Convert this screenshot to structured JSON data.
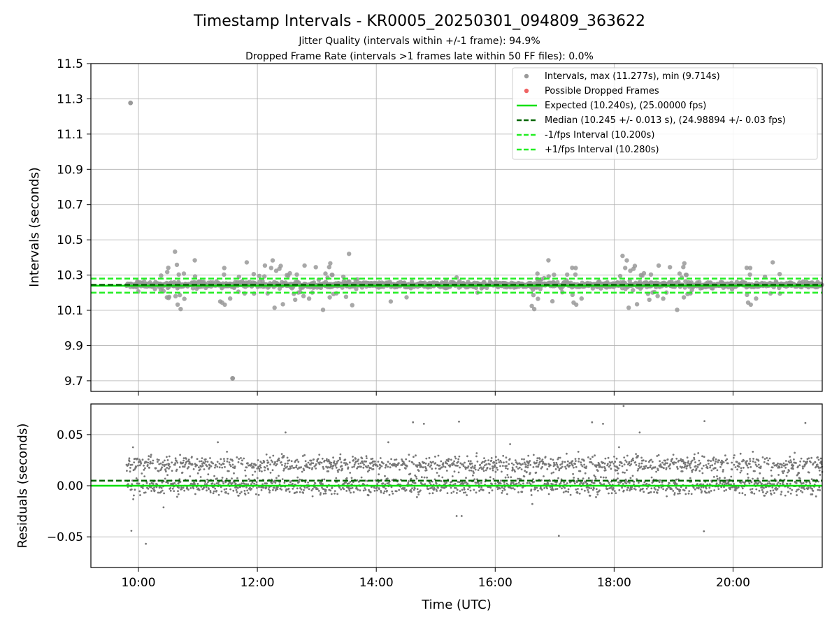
{
  "chart_data": {
    "type": "scatter",
    "title": "Timestamp Intervals - KR0005_20250301_094809_363622",
    "subtitle_1": "Jitter Quality (intervals within +/-1 frame): 94.9%",
    "subtitle_2": "Dropped Frame Rate (intervals >1 frames late within 50 FF files): 0.0%",
    "xlabel": "Time (UTC)",
    "x_tick_labels": [
      "10:00",
      "12:00",
      "14:00",
      "16:00",
      "18:00",
      "20:00"
    ],
    "xlim": [
      "09:12",
      "21:30"
    ],
    "data_start": "09:48",
    "top_panel": {
      "ylabel": "Intervals (seconds)",
      "ylim": [
        9.64,
        11.5
      ],
      "y_tick_labels": [
        "9.7",
        "9.9",
        "10.1",
        "10.3",
        "10.5",
        "10.7",
        "10.9",
        "11.1",
        "11.3",
        "11.5"
      ],
      "grid": true,
      "expected": 10.24,
      "median": 10.245,
      "lower": 10.2,
      "upper": 10.28,
      "max": 11.277,
      "min": 9.714,
      "max_at": "09:52",
      "min_at": "11:35",
      "dropped_frames": 0
    },
    "bottom_panel": {
      "ylabel": "Residuals (seconds)",
      "ylim": [
        -0.08,
        0.08
      ],
      "y_tick_labels": [
        "−0.05",
        "0.00",
        "0.05"
      ],
      "grid": true,
      "expected": 0.0,
      "median": 0.005
    },
    "legend": {
      "position": "top-right",
      "entries": [
        "Intervals, max (11.277s), min (9.714s)",
        "Possible Dropped Frames",
        "Expected (10.240s), (25.00000 fps)",
        "Median (10.245 +/- 0.013 s), (24.98894 +/- 0.03 fps)",
        "-1/fps Interval (10.200s)",
        "+1/fps Interval (10.280s)"
      ]
    },
    "colors": {
      "points": "#999999",
      "residual_points": "#777777",
      "dropped": "#ef6464",
      "expected": "#00e000",
      "median": "#006400",
      "interval": "#22ee22"
    }
  }
}
